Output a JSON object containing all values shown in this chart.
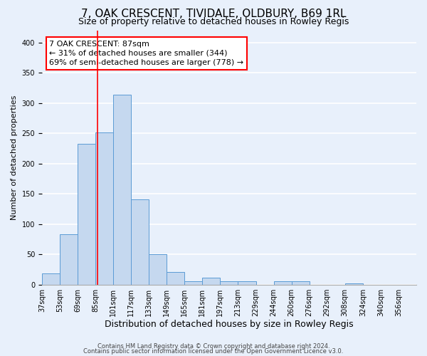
{
  "title": "7, OAK CRESCENT, TIVIDALE, OLDBURY, B69 1RL",
  "subtitle": "Size of property relative to detached houses in Rowley Regis",
  "xlabel": "Distribution of detached houses by size in Rowley Regis",
  "ylabel": "Number of detached properties",
  "bin_labels": [
    "37sqm",
    "53sqm",
    "69sqm",
    "85sqm",
    "101sqm",
    "117sqm",
    "133sqm",
    "149sqm",
    "165sqm",
    "181sqm",
    "197sqm",
    "213sqm",
    "229sqm",
    "244sqm",
    "260sqm",
    "276sqm",
    "292sqm",
    "308sqm",
    "324sqm",
    "340sqm",
    "356sqm"
  ],
  "bar_heights": [
    19,
    83,
    233,
    251,
    314,
    141,
    50,
    21,
    5,
    11,
    5,
    5,
    0,
    5,
    5,
    0,
    0,
    2,
    0,
    0,
    0
  ],
  "bar_color": "#c5d8ef",
  "bar_edge_color": "#5b9bd5",
  "annotation_line1": "7 OAK CRESCENT: 87sqm",
  "annotation_line2": "← 31% of detached houses are smaller (344)",
  "annotation_line3": "69% of semi-detached houses are larger (778) →",
  "ylim": [
    0,
    420
  ],
  "yticks": [
    0,
    50,
    100,
    150,
    200,
    250,
    300,
    350,
    400
  ],
  "footer_line1": "Contains HM Land Registry data © Crown copyright and database right 2024.",
  "footer_line2": "Contains public sector information licensed under the Open Government Licence v3.0.",
  "background_color": "#e8f0fb",
  "grid_color": "#ffffff",
  "title_fontsize": 11,
  "subtitle_fontsize": 9,
  "xlabel_fontsize": 9,
  "ylabel_fontsize": 8,
  "tick_fontsize": 7,
  "footer_fontsize": 6,
  "ann_fontsize": 8
}
